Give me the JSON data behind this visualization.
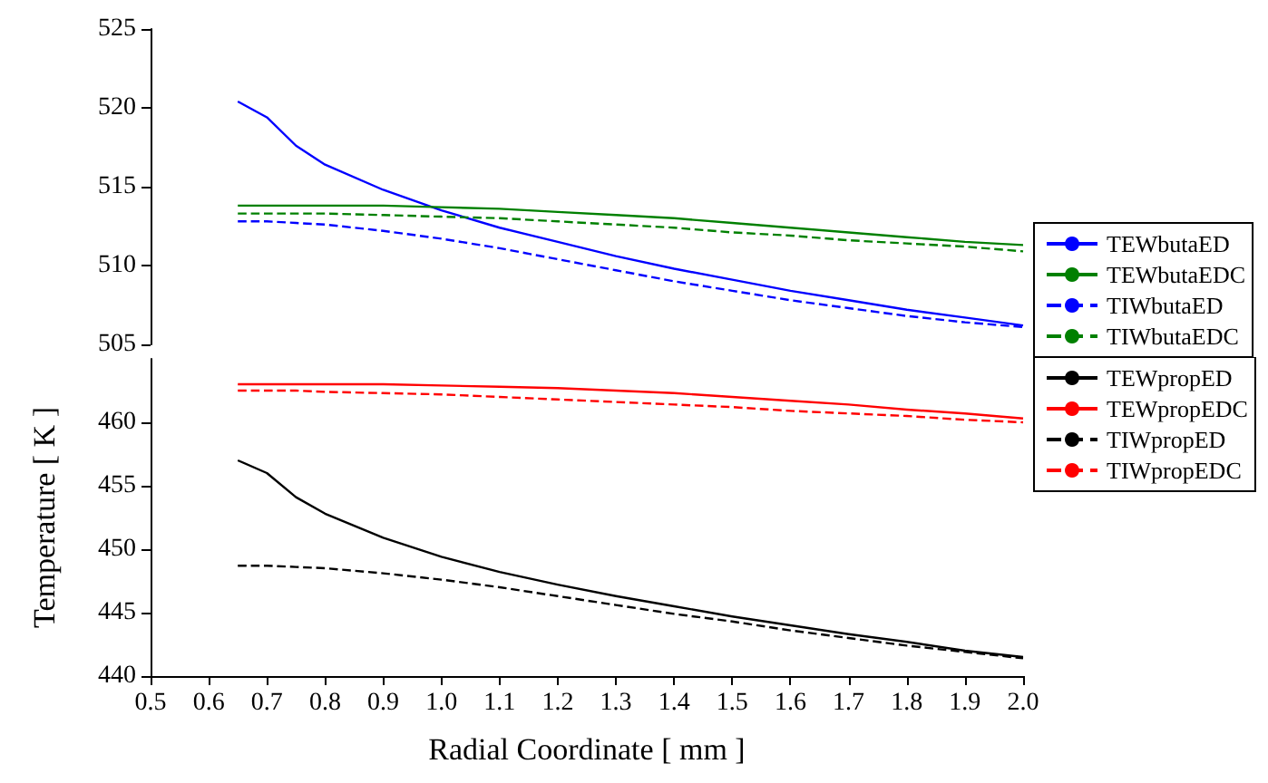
{
  "chart_data": [
    {
      "type": "line",
      "xlim": [
        0.5,
        2.0
      ],
      "ylim": [
        505,
        525
      ],
      "yticks": [
        505,
        510,
        515,
        520,
        525
      ],
      "tick_labels": "y",
      "legend": "right",
      "marker": "none",
      "x": [
        0.65,
        0.7,
        0.75,
        0.8,
        0.9,
        1.0,
        1.1,
        1.2,
        1.3,
        1.4,
        1.5,
        1.6,
        1.7,
        1.8,
        1.9,
        2.0
      ],
      "series": [
        {
          "name": "TEWbutaED",
          "color": "#0000ff",
          "line_style": "solid",
          "values": [
            520.4,
            519.4,
            517.6,
            516.4,
            514.8,
            513.5,
            512.4,
            511.5,
            510.6,
            509.8,
            509.1,
            508.4,
            507.8,
            507.2,
            506.7,
            506.2
          ]
        },
        {
          "name": "TEWbutaEDC",
          "color": "#008000",
          "line_style": "solid",
          "values": [
            513.8,
            513.8,
            513.8,
            513.8,
            513.8,
            513.7,
            513.6,
            513.4,
            513.2,
            513.0,
            512.7,
            512.4,
            512.1,
            511.8,
            511.5,
            511.3
          ]
        },
        {
          "name": "TIWbutaED",
          "color": "#0000ff",
          "line_style": "dashed",
          "values": [
            512.8,
            512.8,
            512.7,
            512.6,
            512.2,
            511.7,
            511.1,
            510.4,
            509.7,
            509.0,
            508.4,
            507.8,
            507.3,
            506.8,
            506.4,
            506.1
          ]
        },
        {
          "name": "TIWbutaEDC",
          "color": "#008000",
          "line_style": "dashed",
          "values": [
            513.3,
            513.3,
            513.3,
            513.3,
            513.2,
            513.1,
            513.0,
            512.8,
            512.6,
            512.4,
            512.1,
            511.9,
            511.6,
            511.4,
            511.2,
            510.9
          ]
        }
      ]
    },
    {
      "type": "line",
      "xlabel": "Radial Coordinate [ mm ]",
      "ylabel": "Temperature [ K ]",
      "xlim": [
        0.5,
        2.0
      ],
      "xticks": [
        0.5,
        0.6,
        0.7,
        0.8,
        0.9,
        {
          "value": 1.0,
          "label": "1.0"
        },
        1.1,
        1.2,
        1.3,
        1.4,
        1.5,
        1.6,
        1.7,
        1.8,
        1.9,
        {
          "value": 2.0,
          "label": "2.0"
        }
      ],
      "ylim": [
        440,
        465
      ],
      "yticks": [
        440,
        445,
        450,
        455,
        460
      ],
      "legend": "right",
      "marker": "none",
      "x": [
        0.65,
        0.7,
        0.75,
        0.8,
        0.9,
        1.0,
        1.1,
        1.2,
        1.3,
        1.4,
        1.5,
        1.6,
        1.7,
        1.8,
        1.9,
        2.0
      ],
      "series": [
        {
          "name": "TEWpropED",
          "color": "#000000",
          "line_style": "solid",
          "values": [
            457.0,
            456.0,
            454.1,
            452.8,
            450.9,
            449.4,
            448.2,
            447.2,
            446.3,
            445.5,
            444.7,
            444.0,
            443.3,
            442.7,
            442.0,
            441.5
          ]
        },
        {
          "name": "TEWpropEDC",
          "color": "#ff0000",
          "line_style": "solid",
          "values": [
            463.0,
            463.0,
            463.0,
            463.0,
            463.0,
            462.9,
            462.8,
            462.7,
            462.5,
            462.3,
            462.0,
            461.7,
            461.4,
            461.0,
            460.7,
            460.3
          ]
        },
        {
          "name": "TIWpropED",
          "color": "#000000",
          "line_style": "dashed",
          "values": [
            448.7,
            448.7,
            448.6,
            448.5,
            448.1,
            447.6,
            447.0,
            446.3,
            445.6,
            444.9,
            444.3,
            443.6,
            443.0,
            442.4,
            441.9,
            441.4
          ]
        },
        {
          "name": "TIWpropEDC",
          "color": "#ff0000",
          "line_style": "dashed",
          "values": [
            462.5,
            462.5,
            462.5,
            462.4,
            462.3,
            462.2,
            462.0,
            461.8,
            461.6,
            461.4,
            461.2,
            460.9,
            460.7,
            460.5,
            460.2,
            460.0
          ]
        }
      ]
    }
  ]
}
